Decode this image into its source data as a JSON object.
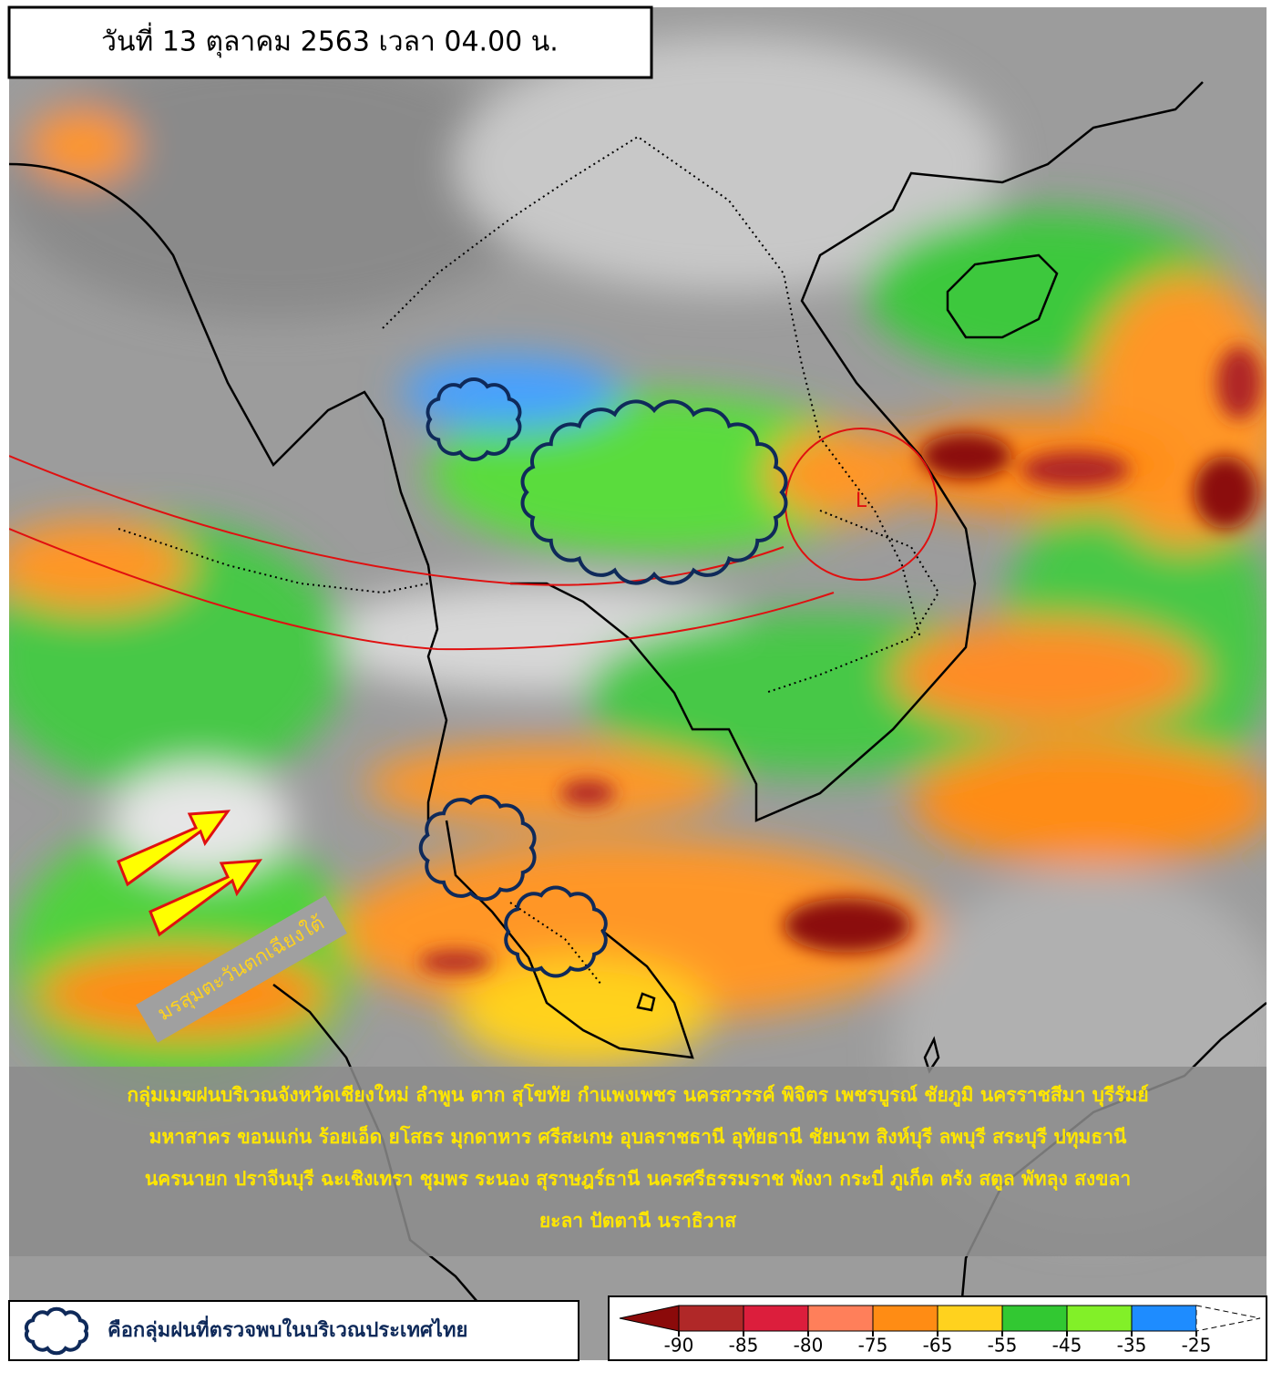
{
  "header": {
    "title": "วันที่ 13 ตุลาคม 2563 เวลา 04.00 น."
  },
  "annotations": {
    "monsoon": "มรสุมตะวันตกเฉียงใต้",
    "low": "L"
  },
  "summary": {
    "lines": [
      "กลุ่มเมฆฝนบริเวณจังหวัดเชียงใหม่ ลำพูน ตาก สุโขทัย กำแพงเพชร นครสวรรค์ พิจิตร เพชรบูรณ์ ชัยภูมิ นครราชสีมา บุรีรัมย์",
      "มหาสาคร ขอนแก่น ร้อยเอ็ด ยโสธร มุกดาหาร ศรีสะเกษ อุบลราชธานี อุทัยธานี ชัยนาท สิงห์บุรี ลพบุรี สระบุรี ปทุมธานี",
      "นครนายก ปราจีนบุรี ฉะเชิงเทรา ชุมพร ระนอง สุราษฎร์ธานี นครศรีธรรมราช พังงา กระบี่ ภูเก็ต ตรัง สตูล พัทลุง สงขลา",
      "ยะลา ปัตตานี นราธิวาส"
    ]
  },
  "legend": {
    "cloud_label": "คือกลุ่มฝนที่ตรวจพบในบริเวณประเทศไทย"
  },
  "colorbar": {
    "ticks": [
      -90,
      -85,
      -80,
      -75,
      -65,
      -55,
      -45,
      -35,
      -25
    ],
    "colors": [
      "#8b0a0a",
      "#b02828",
      "#dc1e3c",
      "#ff7f5a",
      "#ff8c14",
      "#ffd21e",
      "#32c832",
      "#82f028",
      "#1e8cff",
      "#ffffff"
    ]
  }
}
